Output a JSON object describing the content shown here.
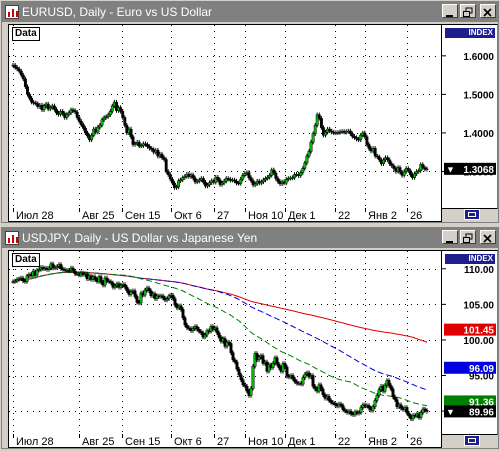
{
  "windows": [
    {
      "title": "EURUSD, Daily - Euro vs US Dollar",
      "data_label": "Data",
      "index_label": "INDEX",
      "y_ticks": [
        "1.6000",
        "1.5000",
        "1.4000",
        "1.3000"
      ],
      "x_ticks": [
        "Июл 28",
        "Авг 25",
        "Сен 15",
        "Окт 6",
        "27",
        "Ноя 10",
        "Дек 1",
        "22",
        "Янв 2",
        "26"
      ],
      "price_badges": [
        {
          "value": "1.3068",
          "color": "#000000",
          "text_color": "#ffffff",
          "marker": "▼"
        }
      ]
    },
    {
      "title": "USDJPY, Daily - US Dollar vs Japanese Yen",
      "data_label": "Data",
      "index_label": "INDEX",
      "y_ticks": [
        "110.00",
        "105.00",
        "100.00",
        "95.00",
        "90.00"
      ],
      "x_ticks": [
        "Июл 28",
        "Авг 25",
        "Сен 15",
        "Окт 6",
        "27",
        "Ноя 10",
        "Дек 1",
        "22",
        "Янв 2",
        "26"
      ],
      "price_badges": [
        {
          "value": "101.45",
          "color": "#e00000",
          "text_color": "#ffffff",
          "marker": ""
        },
        {
          "value": "96.09",
          "color": "#0000e0",
          "text_color": "#ffffff",
          "marker": ""
        },
        {
          "value": "91.36",
          "color": "#008000",
          "text_color": "#ffffff",
          "marker": ""
        },
        {
          "value": "89.96",
          "color": "#000000",
          "text_color": "#ffffff",
          "marker": "▼"
        }
      ]
    }
  ],
  "chart_data": [
    {
      "type": "candlestick",
      "title": "EURUSD, Daily - Euro vs US Dollar",
      "ylim": [
        1.2,
        1.68
      ],
      "grid": true,
      "close": [
        1.576,
        1.57,
        1.566,
        1.56,
        1.55,
        1.54,
        1.52,
        1.5,
        1.49,
        1.48,
        1.478,
        1.476,
        1.468,
        1.472,
        1.46,
        1.47,
        1.475,
        1.462,
        1.466,
        1.47,
        1.461,
        1.452,
        1.448,
        1.456,
        1.45,
        1.44,
        1.448,
        1.452,
        1.46,
        1.458,
        1.454,
        1.44,
        1.43,
        1.421,
        1.412,
        1.4,
        1.392,
        1.382,
        1.394,
        1.41,
        1.402,
        1.415,
        1.42,
        1.434,
        1.44,
        1.442,
        1.447,
        1.456,
        1.47,
        1.48,
        1.458,
        1.466,
        1.456,
        1.44,
        1.42,
        1.4,
        1.41,
        1.39,
        1.37,
        1.372,
        1.376,
        1.366,
        1.367,
        1.372,
        1.37,
        1.365,
        1.36,
        1.357,
        1.35,
        1.355,
        1.34,
        1.345,
        1.336,
        1.331,
        1.3,
        1.292,
        1.28,
        1.27,
        1.258,
        1.26,
        1.276,
        1.278,
        1.284,
        1.287,
        1.293,
        1.287,
        1.291,
        1.283,
        1.273,
        1.275,
        1.278,
        1.282,
        1.272,
        1.262,
        1.265,
        1.271,
        1.276,
        1.272,
        1.285,
        1.278,
        1.266,
        1.27,
        1.275,
        1.282,
        1.28,
        1.277,
        1.278,
        1.275,
        1.27,
        1.269,
        1.28,
        1.29,
        1.295,
        1.297,
        1.284,
        1.276,
        1.265,
        1.268,
        1.275,
        1.27,
        1.273,
        1.278,
        1.282,
        1.285,
        1.29,
        1.304,
        1.296,
        1.282,
        1.274,
        1.268,
        1.273,
        1.27,
        1.28,
        1.282,
        1.283,
        1.284,
        1.292,
        1.293,
        1.289,
        1.297,
        1.308,
        1.322,
        1.34,
        1.352,
        1.376,
        1.398,
        1.42,
        1.447,
        1.438,
        1.414,
        1.394,
        1.402,
        1.41,
        1.405,
        1.402,
        1.4,
        1.401,
        1.401,
        1.403,
        1.404,
        1.402,
        1.404,
        1.405,
        1.398,
        1.391,
        1.388,
        1.384,
        1.382,
        1.394,
        1.4,
        1.39,
        1.37,
        1.36,
        1.353,
        1.36,
        1.34,
        1.338,
        1.33,
        1.32,
        1.33,
        1.336,
        1.33,
        1.32,
        1.315,
        1.308,
        1.3,
        1.31,
        1.298,
        1.29,
        1.3,
        1.308,
        1.302,
        1.292,
        1.284,
        1.294,
        1.3,
        1.302,
        1.318,
        1.31,
        1.306,
        1.3068
      ]
    },
    {
      "type": "candlestick",
      "title": "USDJPY, Daily - US Dollar vs Japanese Yen",
      "ylim": [
        86.5,
        112.5
      ],
      "grid": true,
      "close": [
        108.2,
        108.3,
        108.5,
        108.6,
        108.7,
        108.3,
        108.2,
        109,
        109.2,
        109,
        109.6,
        109.1,
        109.8,
        109.9,
        110.2,
        110,
        110.1,
        109.9,
        110.1,
        110.7,
        110.1,
        110.2,
        110.3,
        110.6,
        110,
        109.9,
        109.8,
        109.8,
        109.7,
        110.1,
        109.7,
        109.3,
        109.3,
        109.1,
        109.4,
        109.2,
        109.3,
        108.6,
        109,
        108.5,
        108.9,
        108.5,
        108.2,
        108.9,
        108.1,
        107.7,
        108.7,
        108.3,
        108.2,
        108,
        107.4,
        107.6,
        107.9,
        107.4,
        107.7,
        107.8,
        107.4,
        106.9,
        106.4,
        106.8,
        106.9,
        106.1,
        105.3,
        105.2,
        106.6,
        106.3,
        107,
        107.3,
        106.9,
        106.2,
        106.5,
        105.8,
        106.2,
        106.1,
        106.2,
        105.9,
        105.6,
        105.8,
        106.2,
        106.3,
        105.8,
        104.9,
        104.5,
        104.8,
        104.3,
        103.1,
        102.1,
        101.7,
        101.6,
        101.3,
        101.6,
        101.9,
        101.5,
        101.2,
        101,
        100.4,
        100.7,
        101.3,
        101.2,
        101.9,
        101.5,
        101.7,
        101,
        100.4,
        99.8,
        100.2,
        99.1,
        99.7,
        99.5,
        98.2,
        97.2,
        96.9,
        95.9,
        95.1,
        94.4,
        93.7,
        93.5,
        92.8,
        92.2,
        93.2,
        96.3,
        98.1,
        97.2,
        97.6,
        97.8,
        96.7,
        96.9,
        95.6,
        96.5,
        96.1,
        96.7,
        97.5,
        96.6,
        96.1,
        95.6,
        96.7,
        96.2,
        94.9,
        94.8,
        95,
        94.5,
        94.1,
        93.9,
        93.9,
        93.8,
        94.7,
        95.2,
        95.4,
        94.8,
        95,
        93.5,
        93.1,
        92.8,
        93.7,
        93.1,
        92.3,
        91.8,
        92.1,
        91.5,
        91.2,
        91.1,
        90.9,
        90.7,
        91,
        90.8,
        90.2,
        90,
        89.8,
        90,
        89.6,
        89.5,
        89.9,
        89.7,
        89.8,
        90.5,
        90.9,
        90.7,
        90.8,
        90.4,
        90.1,
        90.6,
        91.5,
        92.2,
        93,
        93.5,
        92.8,
        93.6,
        94.3,
        93.6,
        93.1,
        92,
        91.6,
        90.6,
        90.9,
        90.4,
        90.2,
        90.5,
        89.7,
        89.3,
        88.9,
        89.4,
        89.3,
        89.6,
        89.1,
        89.8,
        90.3,
        90.1,
        89.96
      ]
    }
  ]
}
